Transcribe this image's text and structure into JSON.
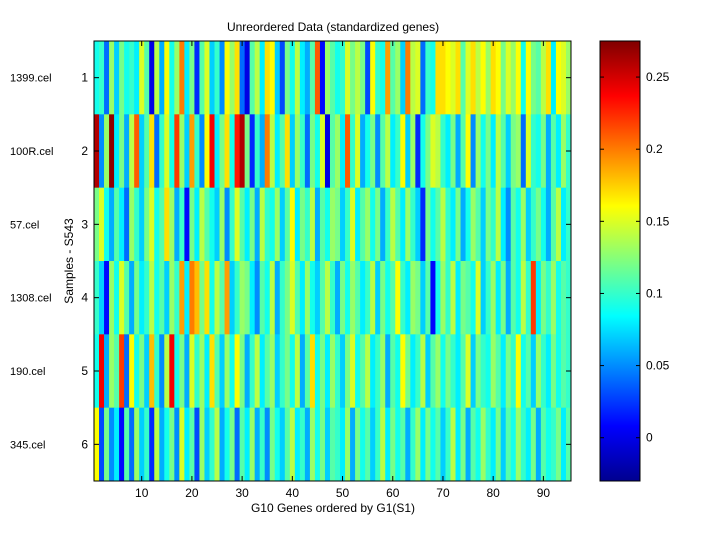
{
  "chart_data": {
    "type": "heatmap",
    "title": "Unreordered Data (standardized genes)",
    "xlabel": "G10 Genes ordered by G1(S1)",
    "ylabel": "Samples - S543",
    "x_ticks": [
      10,
      20,
      30,
      40,
      50,
      60,
      70,
      80,
      90
    ],
    "xlim": [
      0.5,
      95.5
    ],
    "y_ticks": [
      1,
      2,
      3,
      4,
      5,
      6
    ],
    "row_labels": [
      "1399.cel",
      "100R.cel",
      "57.cel",
      "1308.cel",
      "190.cel",
      "345.cel"
    ],
    "colorbar": {
      "colormap": "jet",
      "clim": [
        -0.03,
        0.275
      ],
      "ticks": [
        0,
        0.05,
        0.1,
        0.15,
        0.2,
        0.25
      ],
      "tick_labels": [
        "0",
        "0.05",
        "0.1",
        "0.15",
        "0.2",
        "0.25"
      ]
    },
    "n_columns": 95,
    "values": [
      [
        0.09,
        0.1,
        0.04,
        0.13,
        0.07,
        0.12,
        0.09,
        0.1,
        0.08,
        0.15,
        0.11,
        0.0,
        0.14,
        0.06,
        0.16,
        0.09,
        0.13,
        0.2,
        0.08,
        0.12,
        0.02,
        0.11,
        0.15,
        0.07,
        0.1,
        0.05,
        0.16,
        0.13,
        0.17,
        0.04,
        0.0,
        0.11,
        0.14,
        0.08,
        0.17,
        0.16,
        0.07,
        0.03,
        0.12,
        0.09,
        0.14,
        0.08,
        0.06,
        0.11,
        0.21,
        0.01,
        0.13,
        0.11,
        0.09,
        0.1,
        0.15,
        0.12,
        0.14,
        0.12,
        0.03,
        0.16,
        0.1,
        0.09,
        0.19,
        0.11,
        0.13,
        0.07,
        0.2,
        0.14,
        0.15,
        0.04,
        0.1,
        0.09,
        0.17,
        0.17,
        0.16,
        0.15,
        0.17,
        0.11,
        0.15,
        0.17,
        0.14,
        0.16,
        0.13,
        0.17,
        0.16,
        0.12,
        0.15,
        0.13,
        0.16,
        0.09,
        0.16,
        0.12,
        0.11,
        0.14,
        0.17,
        0.08,
        0.16,
        0.15,
        0.13
      ],
      [
        0.26,
        0.05,
        0.13,
        0.27,
        0.08,
        0.12,
        0.06,
        0.14,
        0.21,
        0.07,
        0.11,
        0.17,
        0.04,
        0.1,
        0.15,
        0.09,
        0.22,
        0.13,
        0.07,
        0.19,
        0.1,
        0.05,
        0.16,
        0.24,
        0.08,
        0.12,
        0.17,
        0.09,
        0.23,
        0.26,
        0.12,
        0.02,
        0.1,
        0.06,
        0.2,
        0.14,
        0.08,
        0.11,
        0.17,
        0.07,
        0.13,
        0.1,
        0.04,
        0.12,
        0.09,
        0.15,
        0.0,
        0.11,
        0.13,
        0.08,
        0.21,
        0.1,
        0.15,
        0.06,
        0.09,
        0.12,
        0.05,
        0.11,
        0.14,
        0.08,
        0.1,
        0.16,
        0.07,
        0.13,
        0.02,
        0.09,
        0.12,
        0.15,
        0.14,
        0.1,
        0.08,
        0.12,
        0.06,
        0.11,
        0.16,
        0.05,
        0.13,
        0.09,
        0.12,
        0.08,
        0.14,
        0.11,
        0.07,
        0.12,
        0.13,
        0.04,
        0.15,
        0.1,
        0.09,
        0.12,
        0.06,
        0.11,
        0.08,
        0.13,
        0.1
      ],
      [
        0.12,
        0.15,
        0.09,
        0.06,
        0.11,
        0.08,
        0.04,
        0.13,
        0.1,
        0.07,
        0.12,
        0.15,
        0.09,
        0.11,
        0.17,
        0.13,
        0.06,
        0.1,
        0.01,
        0.12,
        0.08,
        0.14,
        0.11,
        0.09,
        0.07,
        0.13,
        0.05,
        0.1,
        0.15,
        0.11,
        0.08,
        0.12,
        0.06,
        0.14,
        0.1,
        0.09,
        0.13,
        0.07,
        0.11,
        0.16,
        0.08,
        0.12,
        0.1,
        0.14,
        0.06,
        0.11,
        0.09,
        0.13,
        0.12,
        0.07,
        0.1,
        0.15,
        0.08,
        0.11,
        0.13,
        0.09,
        0.12,
        0.06,
        0.1,
        0.14,
        0.11,
        0.08,
        0.13,
        0.1,
        0.07,
        0.02,
        0.12,
        0.09,
        0.11,
        0.14,
        0.1,
        0.08,
        0.12,
        0.06,
        0.09,
        0.13,
        0.11,
        0.07,
        0.12,
        0.1,
        0.14,
        0.08,
        0.05,
        0.11,
        0.09,
        0.13,
        0.07,
        0.1,
        0.12,
        0.09,
        0.06,
        0.11,
        0.14,
        0.08,
        0.1
      ],
      [
        0.1,
        0.07,
        0.01,
        0.13,
        0.09,
        0.15,
        0.11,
        0.06,
        0.12,
        0.08,
        0.1,
        0.14,
        0.09,
        0.11,
        0.07,
        0.13,
        0.1,
        0.19,
        0.08,
        0.2,
        0.18,
        0.12,
        0.17,
        0.09,
        0.14,
        0.11,
        0.19,
        0.07,
        0.1,
        0.13,
        0.12,
        0.08,
        0.05,
        0.11,
        0.09,
        0.14,
        0.06,
        0.1,
        0.12,
        0.15,
        0.11,
        0.08,
        0.13,
        0.09,
        0.07,
        0.11,
        0.14,
        0.1,
        0.06,
        0.12,
        0.09,
        0.13,
        0.11,
        0.08,
        0.1,
        0.14,
        0.07,
        0.12,
        0.09,
        0.11,
        0.16,
        0.1,
        0.08,
        0.13,
        0.12,
        0.07,
        0.11,
        0.01,
        0.09,
        0.13,
        0.1,
        0.14,
        0.08,
        0.12,
        0.11,
        0.09,
        0.15,
        0.07,
        0.1,
        0.13,
        0.08,
        0.12,
        0.06,
        0.11,
        0.09,
        0.14,
        0.1,
        0.22,
        0.08,
        0.12,
        0.1,
        0.13,
        0.09,
        0.11,
        0.1
      ],
      [
        0.09,
        0.24,
        0.06,
        0.13,
        0.11,
        0.22,
        0.04,
        0.16,
        0.09,
        0.12,
        0.07,
        0.18,
        0.1,
        0.05,
        0.14,
        0.24,
        0.09,
        0.12,
        0.06,
        0.15,
        0.1,
        0.13,
        0.08,
        0.17,
        0.11,
        0.07,
        0.13,
        0.09,
        0.16,
        0.12,
        0.06,
        0.1,
        0.14,
        0.08,
        0.11,
        0.13,
        0.07,
        0.1,
        0.12,
        0.09,
        0.14,
        0.06,
        0.11,
        0.17,
        0.09,
        0.12,
        0.08,
        0.13,
        0.1,
        0.07,
        0.12,
        0.15,
        0.09,
        0.11,
        0.14,
        0.08,
        0.1,
        0.13,
        0.06,
        0.11,
        0.09,
        0.16,
        0.12,
        0.08,
        0.1,
        0.14,
        0.07,
        0.11,
        0.13,
        0.09,
        0.12,
        0.1,
        0.08,
        0.11,
        0.15,
        0.07,
        0.12,
        0.1,
        0.09,
        0.13,
        0.11,
        0.08,
        0.12,
        0.1,
        0.16,
        0.09,
        0.11,
        0.07,
        0.13,
        0.1,
        0.08,
        0.12,
        0.09,
        0.11,
        0.1
      ],
      [
        0.16,
        0.03,
        0.12,
        0.05,
        0.08,
        0.01,
        0.11,
        0.04,
        0.13,
        0.07,
        0.1,
        0.02,
        0.14,
        0.06,
        0.09,
        0.12,
        0.05,
        0.15,
        0.08,
        0.11,
        0.03,
        0.13,
        0.07,
        0.1,
        0.14,
        0.06,
        0.09,
        0.12,
        0.04,
        0.11,
        0.08,
        0.13,
        0.06,
        0.1,
        0.05,
        0.12,
        0.09,
        0.07,
        0.11,
        0.14,
        0.08,
        0.1,
        0.06,
        0.13,
        0.09,
        0.12,
        0.07,
        0.11,
        0.1,
        0.08,
        0.13,
        0.06,
        0.12,
        0.09,
        0.11,
        0.07,
        0.1,
        0.14,
        0.08,
        0.12,
        0.09,
        0.11,
        0.06,
        0.1,
        0.13,
        0.08,
        0.12,
        0.09,
        0.11,
        0.07,
        0.1,
        0.14,
        0.08,
        0.12,
        0.06,
        0.11,
        0.09,
        0.13,
        0.1,
        0.08,
        0.12,
        0.07,
        0.11,
        0.09,
        0.13,
        0.1,
        0.08,
        0.12,
        0.06,
        0.11,
        0.09,
        0.1,
        0.12,
        0.08,
        0.11
      ]
    ]
  }
}
